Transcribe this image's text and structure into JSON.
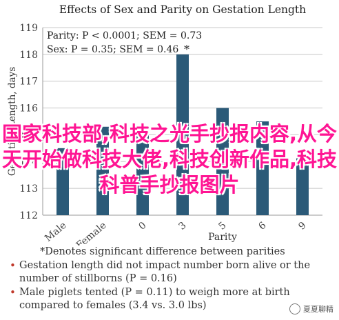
{
  "chart_data": {
    "type": "bar",
    "title": "Effects of Sex and Parity on Gestation Length",
    "ylabel": "Gestation Length, days",
    "xlabel": "Parity",
    "ylim": [
      112,
      119
    ],
    "yticks": [
      112,
      113,
      114,
      115,
      116,
      117,
      118,
      119
    ],
    "categories": [
      "Male",
      "Female",
      "0",
      "3",
      "5",
      "6",
      "9"
    ],
    "values": [
      114.5,
      115.3,
      115.3,
      118,
      116,
      115.5,
      114.2
    ],
    "bar_labels": [
      "",
      "",
      "",
      "*",
      "",
      "",
      ""
    ],
    "annotations": [
      "Parity: P < 0.0001; SEM = 0.73",
      "Sex: P = 0.35; SEM = 0.46"
    ],
    "grid": true,
    "bar_color": "#2b5a78"
  },
  "footnote": "*Denotes significant difference between parities",
  "notes": [
    "Gestation length did not impact number born alive or the number of stillborns (P = 0.16)",
    "Male piglets tented (P = 0.11) to weigh more at birth compared to females (3.4 vs. 3.0 lbs)"
  ],
  "overlay_text": "国家科技部,科技之光手抄报内容,从今天开始做科技大佬,科技创新作品,科技科普手抄报图片",
  "watermark": "夏夏聊精"
}
